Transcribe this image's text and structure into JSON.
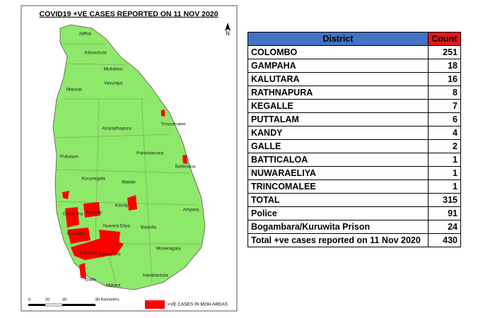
{
  "map": {
    "title": "COVID19 +VE CASES REPORTED ON 11 NOV 2020",
    "north_label": "N",
    "district_labels": [
      "Jaffna",
      "Kilinochchi",
      "Mullaitivu",
      "Mannar",
      "Vavuniya",
      "Trincomalee",
      "Anuradhapura",
      "Polonnaruwa",
      "Batticaloa",
      "Puttalam",
      "Kurunegala",
      "Matale",
      "Kandy",
      "Ampara",
      "Gampaha",
      "Kegalle",
      "Colombo",
      "Nuwara Eliya",
      "Badulla",
      "Moneragala",
      "Ratnapura",
      "Kalutara",
      "Hambantota",
      "Galle",
      "Matara"
    ],
    "scale_labels": [
      "0",
      "20",
      "40",
      "80 Kilometers"
    ],
    "legend": "+VE CASES IN MOH AREAS"
  },
  "table": {
    "header": [
      "District",
      "Count"
    ],
    "rows": [
      [
        "COLOMBO",
        251
      ],
      [
        "GAMPAHA",
        18
      ],
      [
        "KALUTARA",
        16
      ],
      [
        "RATHNAPURA",
        8
      ],
      [
        "KEGALLE",
        7
      ],
      [
        "PUTTALAM",
        6
      ],
      [
        "KANDY",
        4
      ],
      [
        "GALLE",
        2
      ],
      [
        "BATTICALOA",
        1
      ],
      [
        "NUWARAELIYA",
        1
      ],
      [
        "TRINCOMALEE",
        1
      ],
      [
        "TOTAL",
        315
      ],
      [
        "Police",
        91
      ],
      [
        "Bogambara/Kuruwita Prison",
        24
      ],
      [
        "Total +ve cases reported on 11 Nov 2020",
        430
      ]
    ]
  }
}
